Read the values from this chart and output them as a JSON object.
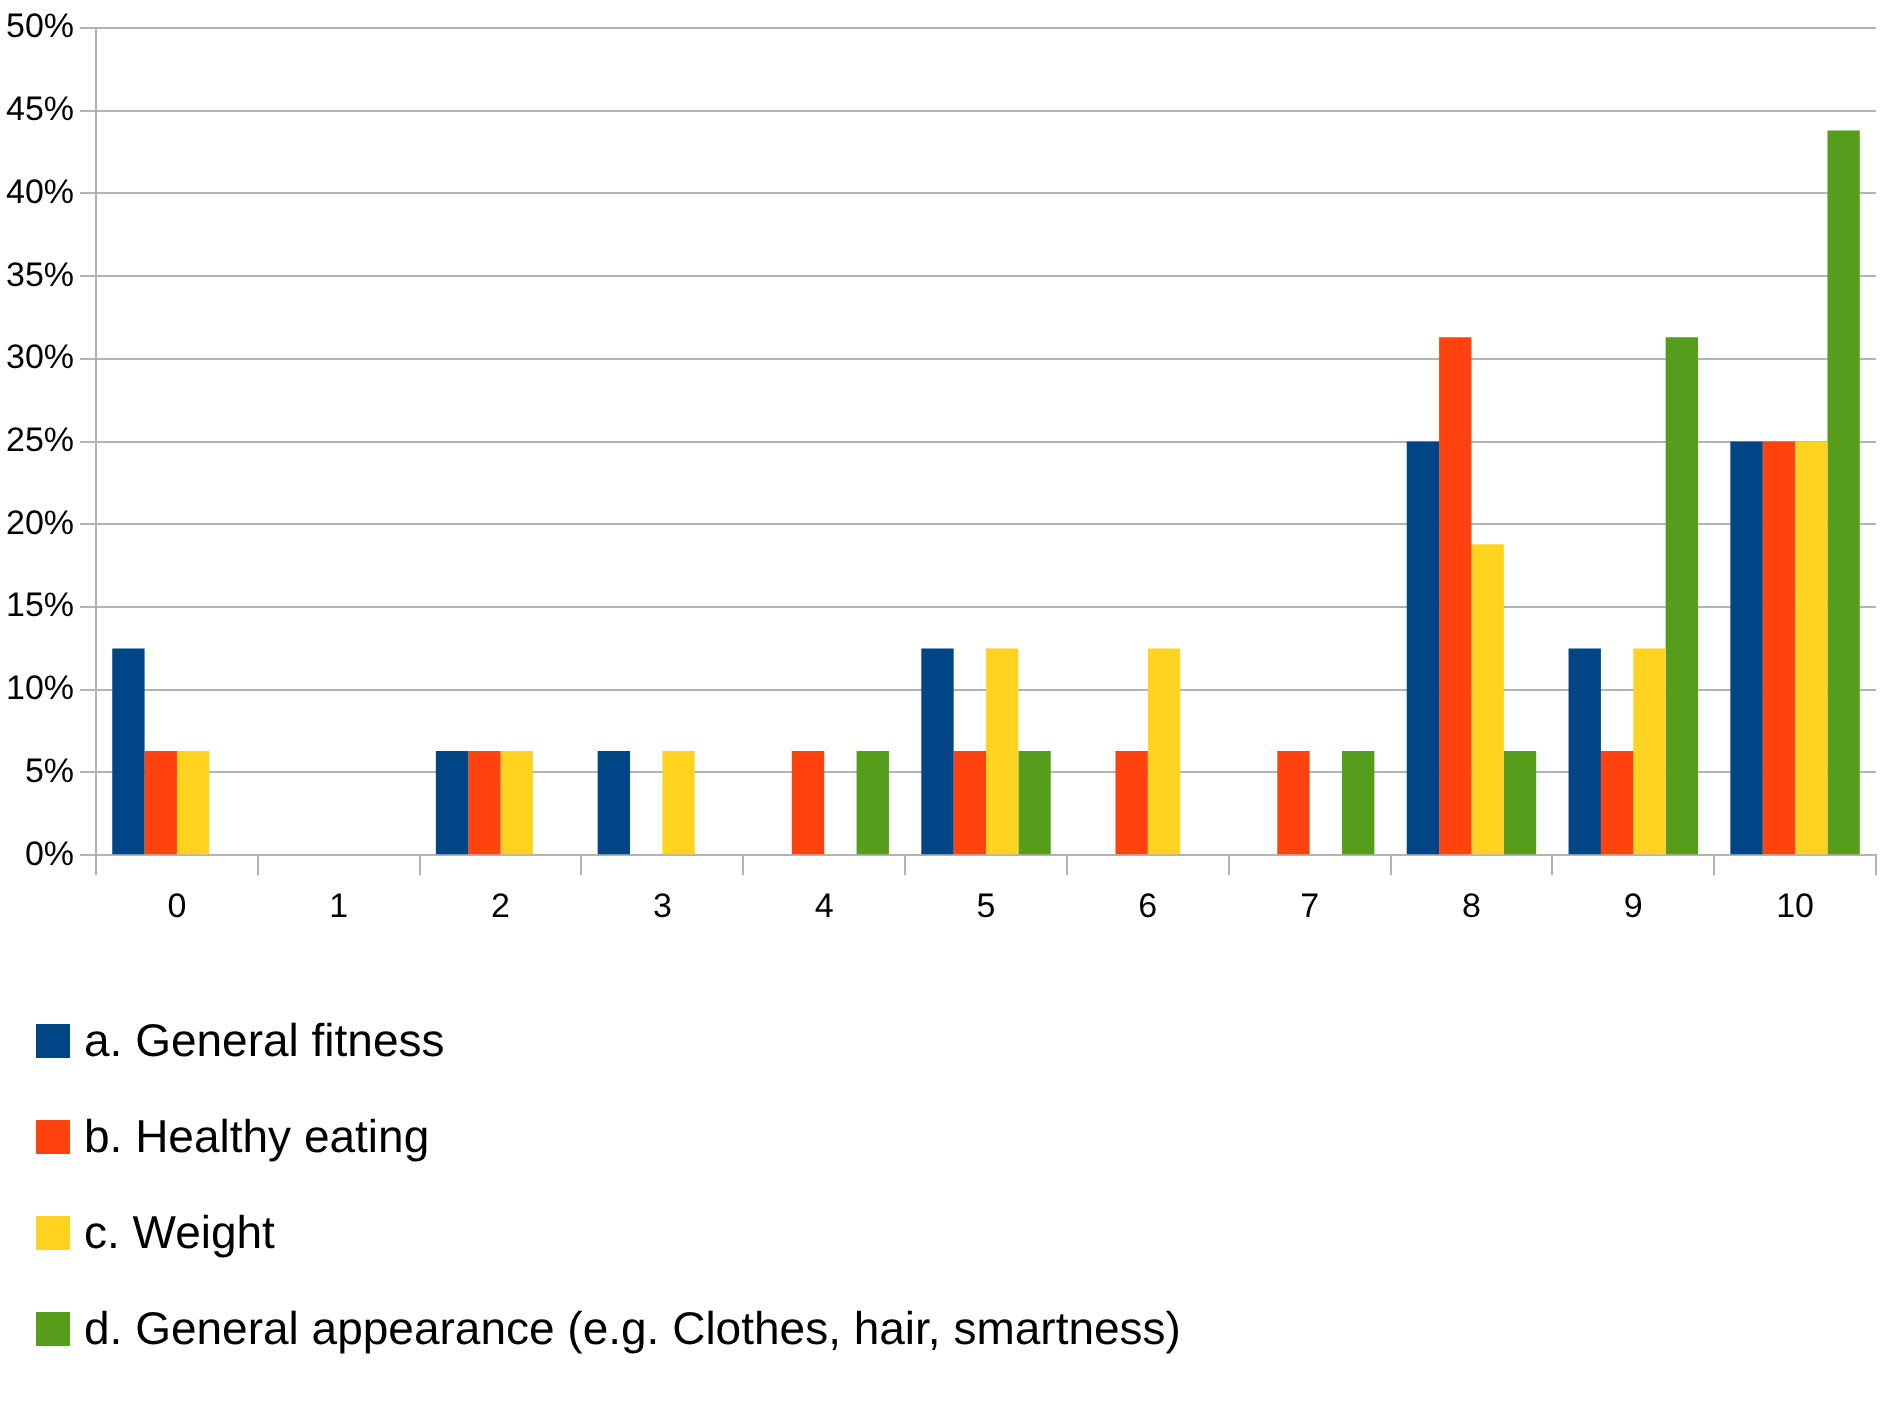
{
  "chart_data": {
    "type": "bar",
    "categories": [
      "0",
      "1",
      "2",
      "3",
      "4",
      "5",
      "6",
      "7",
      "8",
      "9",
      "10"
    ],
    "series": [
      {
        "name": "a. General fitness",
        "color": "#004586",
        "values": [
          12.5,
          0,
          6.3,
          6.3,
          0,
          12.5,
          0,
          0,
          25,
          12.5,
          25
        ]
      },
      {
        "name": "b. Healthy eating",
        "color": "#ff420e",
        "values": [
          6.3,
          0,
          6.3,
          0,
          6.3,
          6.3,
          6.3,
          6.3,
          31.3,
          6.3,
          25
        ]
      },
      {
        "name": "c. Weight",
        "color": "#ffd320",
        "values": [
          6.3,
          0,
          6.3,
          6.3,
          0,
          12.5,
          12.5,
          0,
          18.8,
          12.5,
          25
        ]
      },
      {
        "name": "d. General appearance (e.g. Clothes, hair, smartness)",
        "color": "#579d1c",
        "values": [
          0,
          0,
          0,
          0,
          6.3,
          6.3,
          0,
          6.3,
          6.3,
          31.3,
          43.8
        ]
      }
    ],
    "ylim": [
      0,
      50
    ],
    "yticks": [
      {
        "value": 0,
        "label": "0%"
      },
      {
        "value": 5,
        "label": "5%"
      },
      {
        "value": 10,
        "label": "10%"
      },
      {
        "value": 15,
        "label": "15%"
      },
      {
        "value": 20,
        "label": "20%"
      },
      {
        "value": 25,
        "label": "25%"
      },
      {
        "value": 30,
        "label": "30%"
      },
      {
        "value": 35,
        "label": "35%"
      },
      {
        "value": 40,
        "label": "40%"
      },
      {
        "value": 45,
        "label": "45%"
      },
      {
        "value": 50,
        "label": "50%"
      }
    ],
    "grid": "y",
    "legend": "bottom left"
  }
}
